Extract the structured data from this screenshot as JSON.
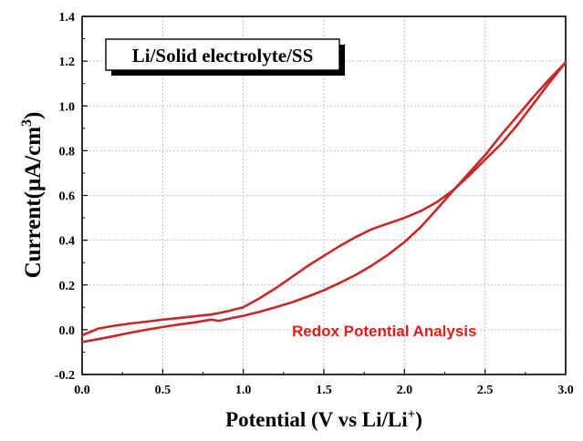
{
  "chart_data": {
    "type": "line",
    "xlabel": "Potential (V vs Li/Li",
    "xlabel_sup": "+",
    "xlabel_close": ")",
    "ylabel": "Current(μA/cm",
    "ylabel_sup": "3",
    "ylabel_close": ")",
    "xlim": [
      0.0,
      3.0
    ],
    "ylim": [
      -0.2,
      1.4
    ],
    "xticks": [
      "0.0",
      "0.5",
      "1.0",
      "1.5",
      "2.0",
      "2.5",
      "3.0"
    ],
    "yticks": [
      "-0.2",
      "0.0",
      "0.2",
      "0.4",
      "0.6",
      "0.8",
      "1.0",
      "1.2",
      "1.4"
    ],
    "grid": true,
    "legend_box": "Li/Solid electrolyte/SS",
    "annotation": "Redox Potential Analysis",
    "series_color": "#c62828",
    "annotation_color": "#e41b17",
    "series": [
      {
        "x": [
          0.0,
          0.1,
          0.2,
          0.3,
          0.4,
          0.5,
          0.6,
          0.7,
          0.8,
          0.85,
          0.9,
          1.0,
          1.1,
          1.2,
          1.3,
          1.4,
          1.5,
          1.6,
          1.7,
          1.8,
          1.9,
          2.0,
          2.1,
          2.2,
          2.3,
          2.4,
          2.5,
          2.6,
          2.7,
          2.8,
          2.9,
          3.0
        ],
        "y": [
          -0.055,
          -0.042,
          -0.028,
          -0.013,
          0.0,
          0.012,
          0.023,
          0.033,
          0.045,
          0.04,
          0.048,
          0.062,
          0.08,
          0.1,
          0.122,
          0.148,
          0.176,
          0.21,
          0.246,
          0.288,
          0.336,
          0.392,
          0.458,
          0.538,
          0.62,
          0.7,
          0.78,
          0.87,
          0.955,
          1.04,
          1.12,
          1.195
        ]
      },
      {
        "x": [
          3.0,
          2.9,
          2.8,
          2.7,
          2.6,
          2.5,
          2.4,
          2.3,
          2.2,
          2.1,
          2.0,
          1.9,
          1.8,
          1.7,
          1.6,
          1.5,
          1.4,
          1.3,
          1.2,
          1.1,
          1.0,
          0.9,
          0.85,
          0.8,
          0.7,
          0.6,
          0.5,
          0.4,
          0.3,
          0.2,
          0.1,
          0.0
        ],
        "y": [
          1.195,
          1.105,
          1.01,
          0.915,
          0.83,
          0.76,
          0.688,
          0.622,
          0.57,
          0.53,
          0.5,
          0.475,
          0.45,
          0.415,
          0.375,
          0.33,
          0.285,
          0.235,
          0.185,
          0.14,
          0.1,
          0.082,
          0.075,
          0.068,
          0.06,
          0.052,
          0.045,
          0.036,
          0.028,
          0.018,
          0.005,
          -0.025
        ]
      }
    ]
  }
}
